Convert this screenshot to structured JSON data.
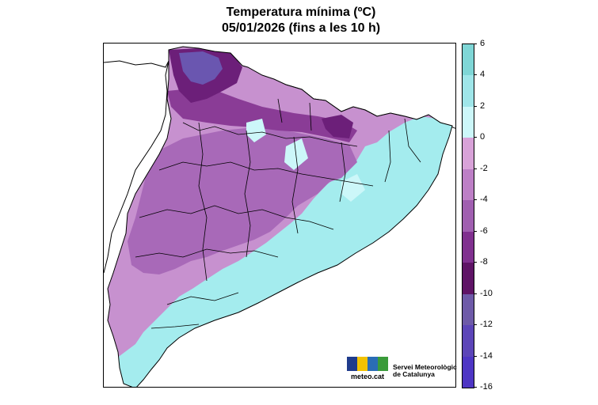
{
  "title": {
    "line1": "Temperatura mínima (ºC)",
    "line2": "05/01/2026 (fins a les 10 h)"
  },
  "legend": {
    "ticks": [
      "6",
      "4",
      "2",
      "0",
      "-2",
      "-4",
      "-6",
      "-8",
      "-10",
      "-12",
      "-14",
      "-16"
    ],
    "colors": [
      "#7fd6d6",
      "#9fe6e9",
      "#ccf7f9",
      "#d8a2d8",
      "#bd7fc6",
      "#a05fb0",
      "#80308f",
      "#5f1466",
      "#6e5aa8",
      "#5c45b8",
      "#4e36c4"
    ]
  },
  "map": {
    "colors": {
      "warm": "#a4ecee",
      "cyan_light": "#ccf7f9",
      "lilac": "#c791cf",
      "purple": "#a869b8",
      "dark_purple": "#8a3c96",
      "deep": "#6c1f79",
      "violet": "#6a56b0",
      "border": "#000000"
    }
  },
  "logo": {
    "site": "meteo.cat",
    "line1": "Servei Meteorològic",
    "line2": "de Catalunya"
  }
}
